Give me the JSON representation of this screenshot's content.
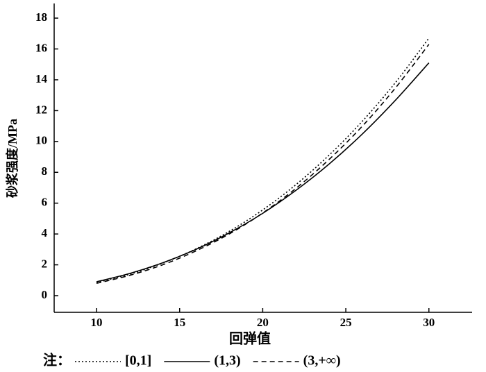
{
  "chart_data": {
    "type": "line",
    "x_label": "回弹值",
    "y_label": "砂浆强度/MPa",
    "legend_prefix": "注：",
    "x": [
      10,
      12,
      14,
      16,
      18,
      20,
      22,
      24,
      26,
      28,
      30
    ],
    "series": [
      {
        "name": "[0,1]",
        "color": "#000000",
        "style": "dotted",
        "values": [
          0.85,
          1.39,
          2.12,
          3.04,
          4.18,
          5.56,
          7.2,
          9.12,
          11.32,
          13.84,
          16.7
        ]
      },
      {
        "name": "(1,3)",
        "color": "#000000",
        "style": "solid",
        "values": [
          0.9,
          1.44,
          2.14,
          3.01,
          4.08,
          5.34,
          6.83,
          8.54,
          10.49,
          12.69,
          15.1
        ]
      },
      {
        "name": "(3,+∞)",
        "color": "#000000",
        "style": "dashed",
        "values": [
          0.8,
          1.32,
          2.01,
          2.91,
          4.01,
          5.36,
          6.96,
          8.84,
          11.0,
          13.49,
          16.3
        ]
      }
    ],
    "xlim": [
      7.45,
      32.6
    ],
    "ylim": [
      -1.08,
      18.95
    ],
    "xticks": [
      10,
      15,
      20,
      25,
      30
    ],
    "yticks": [
      0,
      2,
      4,
      6,
      8,
      10,
      12,
      14,
      16,
      18
    ],
    "legend": "bottom",
    "grid": false
  }
}
